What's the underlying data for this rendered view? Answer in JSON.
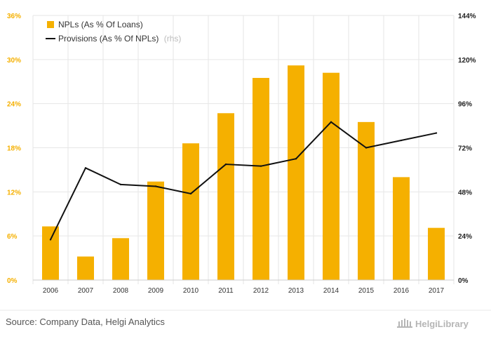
{
  "chart_data": {
    "type": "bar",
    "categories": [
      "2006",
      "2007",
      "2008",
      "2009",
      "2010",
      "2011",
      "2012",
      "2013",
      "2014",
      "2015",
      "2016",
      "2017"
    ],
    "series": [
      {
        "name": "NPLs (As % Of Loans)",
        "type": "bar",
        "axis": "left",
        "color": "#f5b000",
        "values": [
          7.3,
          3.2,
          5.7,
          13.4,
          18.6,
          22.7,
          27.5,
          29.2,
          28.2,
          21.5,
          14.0,
          7.1
        ]
      },
      {
        "name": "Provisions (As % Of NPLs)",
        "name_note": "(rhs)",
        "type": "line",
        "axis": "right",
        "color": "#111111",
        "values": [
          22,
          61,
          52,
          51,
          47,
          63,
          62,
          66,
          86,
          72,
          76,
          80
        ]
      }
    ],
    "y_left": {
      "min": 0,
      "max": 36,
      "ticks": [
        "0%",
        "6%",
        "12%",
        "18%",
        "24%",
        "30%",
        "36%"
      ]
    },
    "y_right": {
      "min": 0,
      "max": 144,
      "ticks": [
        "0%",
        "24%",
        "48%",
        "72%",
        "96%",
        "120%",
        "144%"
      ]
    },
    "grid": true,
    "legend_position": "top-left"
  },
  "footer": {
    "source": "Source: Company Data, Helgi Analytics",
    "brand": "HelgiLibrary"
  }
}
